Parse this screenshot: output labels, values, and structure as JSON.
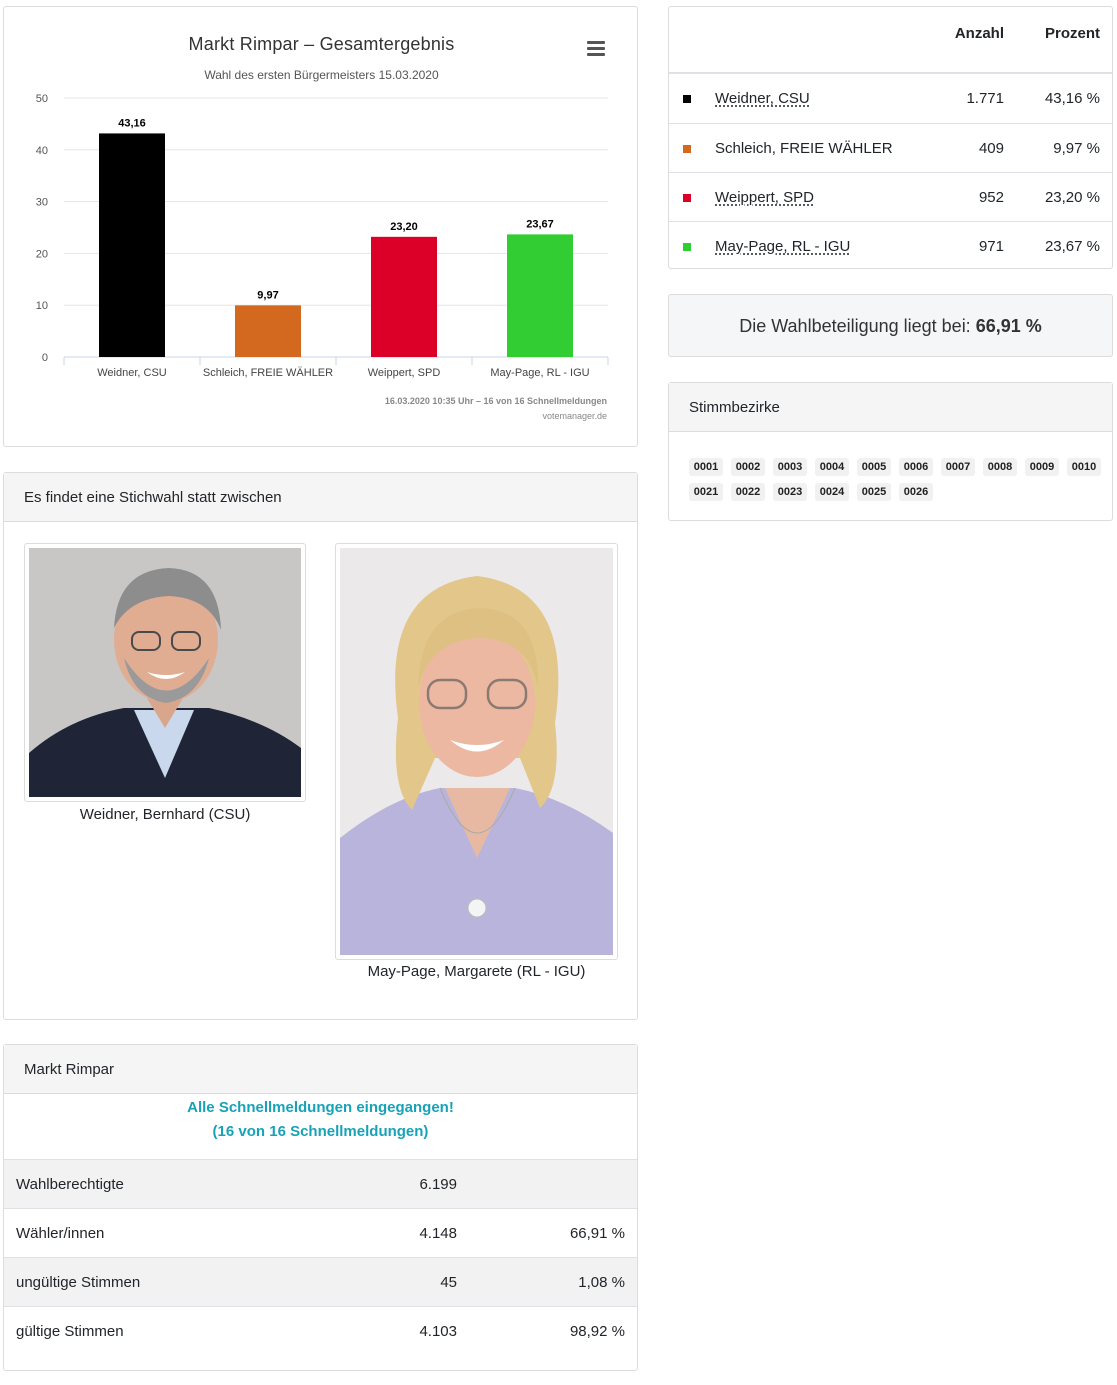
{
  "chart_data": {
    "type": "bar",
    "title": "Markt Rimpar – Gesamtergebnis",
    "subtitle": "Wahl des ersten Bürgermeisters 15.03.2020",
    "categories": [
      "Weidner, CSU",
      "Schleich, FREIE WÄHLER",
      "Weippert, SPD",
      "May-Page, RL - IGU"
    ],
    "values": [
      43.16,
      9.97,
      23.2,
      23.67
    ],
    "data_labels": [
      "43,16",
      "9,97",
      "23,20",
      "23,67"
    ],
    "colors": [
      "#000000",
      "#d2691e",
      "#dc0028",
      "#32cd32"
    ],
    "ylim": [
      0,
      50
    ],
    "yticks": [
      0,
      10,
      20,
      30,
      40,
      50
    ],
    "grid": true,
    "credit_line1": "16.03.2020 10:35 Uhr – 16 von 16 Schnellmeldungen",
    "credit_line2": "votemanager.de"
  },
  "results": {
    "header_count": "Anzahl",
    "header_percent": "Prozent",
    "rows": [
      {
        "name": "Weidner, CSU",
        "count": "1.771",
        "percent": "43,16 %",
        "color": "#000000",
        "link": true
      },
      {
        "name": "Schleich, FREIE WÄHLER",
        "count": "409",
        "percent": "9,97 %",
        "color": "#d2691e",
        "link": false
      },
      {
        "name": "Weippert, SPD",
        "count": "952",
        "percent": "23,20 %",
        "color": "#dc0028",
        "link": true
      },
      {
        "name": "May-Page, RL - IGU",
        "count": "971",
        "percent": "23,67 %",
        "color": "#32cd32",
        "link": true
      }
    ]
  },
  "turnout": {
    "label": "Die Wahlbeteiligung liegt bei:",
    "value": "66,91 %"
  },
  "districts": {
    "title": "Stimmbezirke",
    "items": [
      "0001",
      "0002",
      "0003",
      "0004",
      "0005",
      "0006",
      "0007",
      "0008",
      "0009",
      "0010",
      "0021",
      "0022",
      "0023",
      "0024",
      "0025",
      "0026"
    ]
  },
  "runoff": {
    "title": "Es findet eine Stichwahl statt zwischen",
    "candidate1": "Weidner, Bernhard (CSU)",
    "candidate2": "May-Page, Margarete (RL - IGU)"
  },
  "stats": {
    "title": "Markt Rimpar",
    "status_line1": "Alle Schnellmeldungen eingegangen!",
    "status_line2": "(16 von 16 Schnellmeldungen)",
    "rows": [
      {
        "label": "Wahlberechtigte",
        "value": "6.199",
        "percent": ""
      },
      {
        "label": "Wähler/innen",
        "value": "4.148",
        "percent": "66,91 %"
      },
      {
        "label": "ungültige Stimmen",
        "value": "45",
        "percent": "1,08 %"
      },
      {
        "label": "gültige Stimmen",
        "value": "4.103",
        "percent": "98,92 %"
      }
    ]
  }
}
